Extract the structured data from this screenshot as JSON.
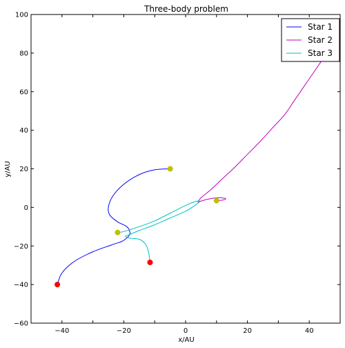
{
  "chart_data": {
    "type": "line",
    "title": "Three-body problem",
    "xlabel": "x/AU",
    "ylabel": "y/AU",
    "xlim": [
      -50,
      50
    ],
    "ylim": [
      -60,
      100
    ],
    "xticks": [
      -40,
      -20,
      0,
      20,
      40
    ],
    "yticks": [
      -60,
      -40,
      -20,
      0,
      20,
      40,
      60,
      80,
      100
    ],
    "grid": false,
    "legend_position": "top-right",
    "series": [
      {
        "name": "Star 1",
        "color": "#0000ff",
        "points": [
          [
            -5,
            20
          ],
          [
            -10,
            19.5
          ],
          [
            -15,
            17
          ],
          [
            -20,
            12
          ],
          [
            -23.5,
            6
          ],
          [
            -25,
            0
          ],
          [
            -24.5,
            -4
          ],
          [
            -22,
            -7.5
          ],
          [
            -19,
            -10
          ],
          [
            -18,
            -13
          ],
          [
            -18.5,
            -15
          ],
          [
            -20.5,
            -17.5
          ],
          [
            -24,
            -19.5
          ],
          [
            -30,
            -23
          ],
          [
            -36,
            -28
          ],
          [
            -40,
            -34
          ],
          [
            -41.5,
            -40
          ]
        ],
        "start_marker": {
          "x": -5,
          "y": 20,
          "color": "#bfbf00"
        },
        "end_marker": {
          "x": -41.5,
          "y": -40,
          "color": "#ff0000"
        }
      },
      {
        "name": "Star 2",
        "color": "#bf00bf",
        "points": [
          [
            10,
            3.5
          ],
          [
            12,
            3.8
          ],
          [
            13,
            4.5
          ],
          [
            11,
            5
          ],
          [
            8,
            4.5
          ],
          [
            5,
            3.3
          ],
          [
            4,
            2.5
          ],
          [
            5,
            5
          ],
          [
            8,
            9
          ],
          [
            12,
            15
          ],
          [
            16,
            21
          ],
          [
            20,
            27.5
          ],
          [
            24,
            34
          ],
          [
            28,
            41
          ],
          [
            32,
            48
          ],
          [
            35,
            55
          ],
          [
            38,
            62
          ],
          [
            41,
            69
          ],
          [
            44,
            76
          ],
          [
            47,
            83
          ],
          [
            50,
            90
          ]
        ],
        "start_marker": {
          "x": 10,
          "y": 3.5,
          "color": "#bfbf00"
        },
        "end_marker": null
      },
      {
        "name": "Star 3",
        "color": "#00bfbf",
        "points": [
          [
            -22,
            -13
          ],
          [
            -20,
            -12.5
          ],
          [
            -15,
            -10
          ],
          [
            -10,
            -7
          ],
          [
            -5,
            -3
          ],
          [
            0,
            1
          ],
          [
            3,
            3
          ],
          [
            4.5,
            3.2
          ],
          [
            3,
            1
          ],
          [
            0,
            -2
          ],
          [
            -5,
            -5.5
          ],
          [
            -10,
            -9
          ],
          [
            -15,
            -12
          ],
          [
            -18,
            -14
          ],
          [
            -19.5,
            -15
          ],
          [
            -18,
            -16
          ],
          [
            -15,
            -16.5
          ],
          [
            -13,
            -19
          ],
          [
            -12,
            -23
          ],
          [
            -11.5,
            -28.5
          ]
        ],
        "start_marker": {
          "x": -22,
          "y": -13,
          "color": "#bfbf00"
        },
        "end_marker": {
          "x": -11.5,
          "y": -28.5,
          "color": "#ff0000"
        }
      }
    ]
  }
}
